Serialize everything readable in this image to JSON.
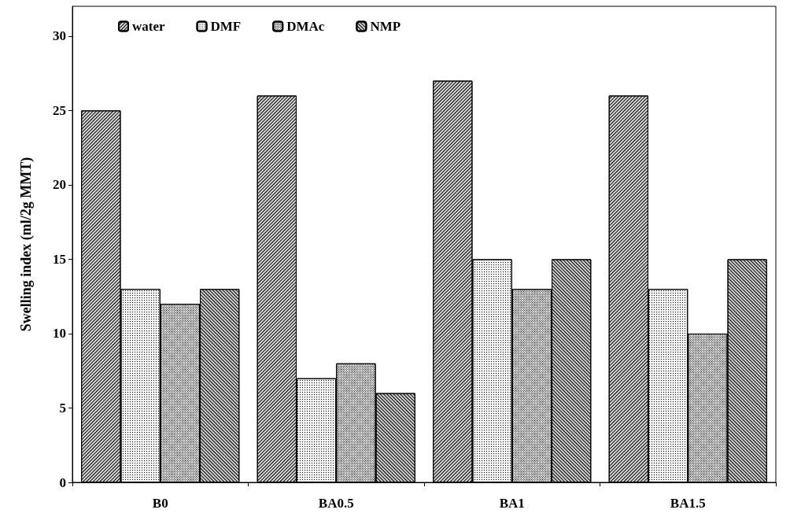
{
  "chart_data": {
    "type": "bar",
    "ylabel": "Swelling index (ml/2g MMT)",
    "categories": [
      "B0",
      "BA0.5",
      "BA1",
      "BA1.5"
    ],
    "series": [
      {
        "name": "water",
        "color": "#d9d9d9",
        "values": [
          25,
          26,
          27,
          26
        ]
      },
      {
        "name": "DMF",
        "color": "#f2f2f2",
        "values": [
          13,
          7,
          15,
          13
        ]
      },
      {
        "name": "DMAc",
        "color": "#e6e6e6",
        "values": [
          12,
          8,
          13,
          10
        ]
      },
      {
        "name": "NMP",
        "color": "#d0d0d0",
        "values": [
          13,
          6,
          15,
          15
        ]
      }
    ],
    "ylim": [
      0,
      32
    ],
    "yticks": [
      0,
      5,
      10,
      15,
      20,
      25,
      30
    ],
    "grid": false,
    "legend": "top left"
  }
}
